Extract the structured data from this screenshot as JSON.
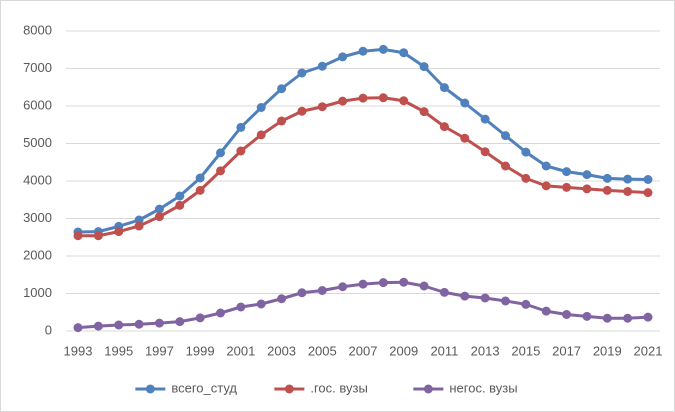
{
  "chart_data": {
    "type": "line",
    "x": [
      1993,
      1994,
      1995,
      1996,
      1997,
      1998,
      1999,
      2000,
      2001,
      2002,
      2003,
      2004,
      2005,
      2006,
      2007,
      2008,
      2009,
      2010,
      2011,
      2012,
      2013,
      2014,
      2015,
      2016,
      2017,
      2018,
      2019,
      2020,
      2021
    ],
    "xlim": [
      1993,
      2021
    ],
    "xticks": [
      1993,
      1995,
      1997,
      1999,
      2001,
      2003,
      2005,
      2007,
      2009,
      2011,
      2013,
      2015,
      2017,
      2019,
      2021
    ],
    "ylim": [
      0,
      8000
    ],
    "yticks": [
      0,
      1000,
      2000,
      3000,
      4000,
      5000,
      6000,
      7000,
      8000
    ],
    "grid": true,
    "legend": "bottom",
    "series": [
      {
        "name": "всего_студ",
        "color": "#4f81bd",
        "values": [
          2640,
          2650,
          2790,
          2960,
          3250,
          3600,
          4080,
          4750,
          5430,
          5960,
          6460,
          6880,
          7060,
          7310,
          7460,
          7510,
          7420,
          7050,
          6490,
          6080,
          5650,
          5210,
          4770,
          4400,
          4250,
          4170,
          4070,
          4050,
          4040
        ]
      },
      {
        "name": ".гос. вузы",
        "color": "#c0504d",
        "values": [
          2540,
          2540,
          2650,
          2800,
          3050,
          3350,
          3750,
          4270,
          4800,
          5230,
          5600,
          5860,
          5980,
          6130,
          6210,
          6220,
          6140,
          5850,
          5450,
          5140,
          4780,
          4400,
          4070,
          3870,
          3830,
          3790,
          3750,
          3720,
          3690
        ]
      },
      {
        "name": "негос. вузы",
        "color": "#8064a2",
        "values": [
          90,
          130,
          160,
          180,
          210,
          250,
          350,
          480,
          640,
          720,
          860,
          1020,
          1080,
          1180,
          1250,
          1290,
          1300,
          1200,
          1030,
          930,
          880,
          800,
          710,
          530,
          440,
          390,
          340,
          340,
          370
        ]
      }
    ]
  }
}
